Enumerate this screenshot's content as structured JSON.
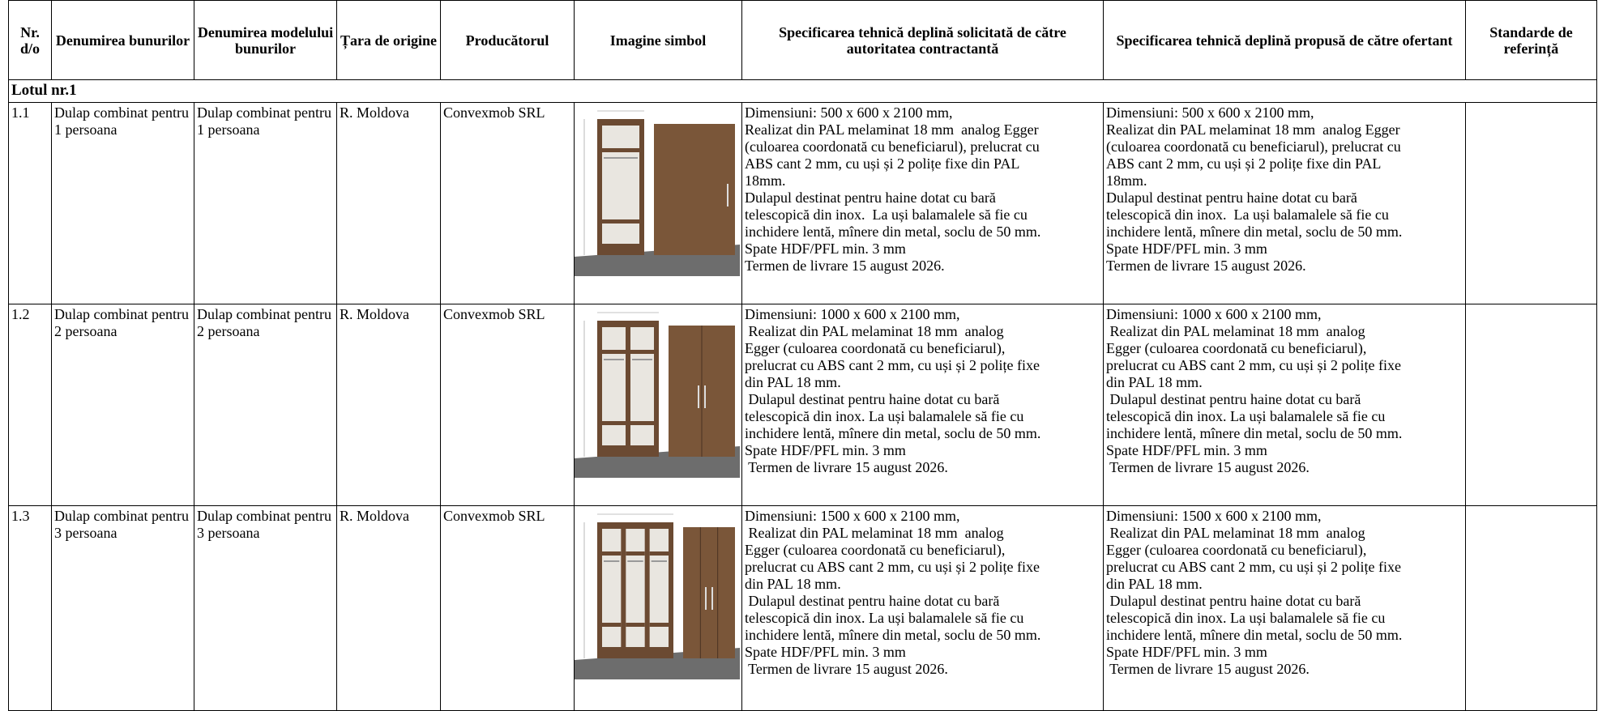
{
  "header": {
    "cells": [
      "Nr. d/o",
      "Denumirea bunurilor",
      "Denumirea modelului bunurilor",
      "Țara de origine",
      "Producătorul",
      "Imagine simbol",
      "Specificarea tehnică deplină solicitată de către autoritatea contractantă",
      "Specificarea tehnică deplină propusă de către ofertant",
      "Standarde de referință"
    ]
  },
  "lot": {
    "label": "Lotul nr.1"
  },
  "rows": [
    {
      "nr": "1.1",
      "name": "Dulap combinat pentru 1 persoana",
      "model": "Dulap combinat pentru 1 persoana",
      "origin": "R. Moldova",
      "producer": "Convexmob SRL",
      "spec_requested": [
        "Dimensiuni: 500 x 600 x 2100 mm,",
        "Realizat din PAL melaminat 18 mm  analog Egger",
        "(culoarea coordonată cu beneficiarul), prelucrat cu",
        "ABS cant 2 mm, cu uși și 2 polițe fixe din PAL",
        "18mm.",
        "Dulapul destinat pentru haine dotat cu bară",
        "telescopică din inox.  La uși balamalele să fie cu",
        "inchidere lentă, mînere din metal, soclu de 50 mm.",
        "Spate HDF/PFL min. 3 mm",
        "Termen de livrare 15 august 2026."
      ],
      "spec_offered": [
        "Dimensiuni: 500 x 600 x 2100 mm,",
        "Realizat din PAL melaminat 18 mm  analog Egger",
        "(culoarea coordonată cu beneficiarul), prelucrat cu",
        "ABS cant 2 mm, cu uși și 2 polițe fixe din PAL",
        "18mm.",
        "Dulapul destinat pentru haine dotat cu bară",
        "telescopică din inox.  La uși balamalele să fie cu",
        "inchidere lentă, mînere din metal, soclu de 50 mm.",
        "Spate HDF/PFL min. 3 mm",
        "Termen de livrare 15 august 2026."
      ]
    },
    {
      "nr": "1.2",
      "name": "Dulap combinat pentru 2 persoana",
      "model": "Dulap combinat pentru 2 persoana",
      "origin": "R. Moldova",
      "producer": "Convexmob SRL",
      "spec_requested": [
        "Dimensiuni: 1000 x 600 x 2100 mm,",
        " Realizat din PAL melaminat 18 mm  analog",
        "Egger (culoarea coordonată cu beneficiarul),",
        "prelucrat cu ABS cant 2 mm, cu uși și 2 polițe fixe",
        "din PAL 18 mm.",
        " Dulapul destinat pentru haine dotat cu bară",
        "telescopică din inox. La uși balamalele să fie cu",
        "inchidere lentă, mînere din metal, soclu de 50 mm.",
        "Spate HDF/PFL min. 3 mm",
        " Termen de livrare 15 august 2026."
      ],
      "spec_offered": [
        "Dimensiuni: 1000 x 600 x 2100 mm,",
        " Realizat din PAL melaminat 18 mm  analog",
        "Egger (culoarea coordonată cu beneficiarul),",
        "prelucrat cu ABS cant 2 mm, cu uși și 2 polițe fixe",
        "din PAL 18 mm.",
        " Dulapul destinat pentru haine dotat cu bară",
        "telescopică din inox. La uși balamalele să fie cu",
        "inchidere lentă, mînere din metal, soclu de 50 mm.",
        "Spate HDF/PFL min. 3 mm",
        " Termen de livrare 15 august 2026."
      ]
    },
    {
      "nr": "1.3",
      "name": "Dulap combinat pentru 3 persoana",
      "model": "Dulap combinat pentru 3 persoana",
      "origin": "R. Moldova",
      "producer": "Convexmob SRL",
      "spec_requested": [
        "Dimensiuni: 1500 x 600 x 2100 mm,",
        " Realizat din PAL melaminat 18 mm  analog",
        "Egger (culoarea coordonată cu beneficiarul),",
        "prelucrat cu ABS cant 2 mm, cu uși și 2 polițe fixe",
        "din PAL 18 mm.",
        " Dulapul destinat pentru haine dotat cu bară",
        "telescopică din inox. La uși balamalele să fie cu",
        "inchidere lentă, mînere din metal, soclu de 50 mm.",
        "Spate HDF/PFL min. 3 mm",
        " Termen de livrare 15 august 2026."
      ],
      "spec_offered": [
        "Dimensiuni: 1500 x 600 x 2100 mm,",
        " Realizat din PAL melaminat 18 mm  analog",
        "Egger (culoarea coordonată cu beneficiarul),",
        "prelucrat cu ABS cant 2 mm, cu uși și 2 polițe fixe",
        "din PAL 18 mm.",
        " Dulapul destinat pentru haine dotat cu bară",
        "telescopică din inox. La uși balamalele să fie cu",
        "inchidere lentă, mînere din metal, soclu de 50 mm.",
        "Spate HDF/PFL min. 3 mm",
        " Termen de livrare 15 august 2026."
      ]
    }
  ]
}
